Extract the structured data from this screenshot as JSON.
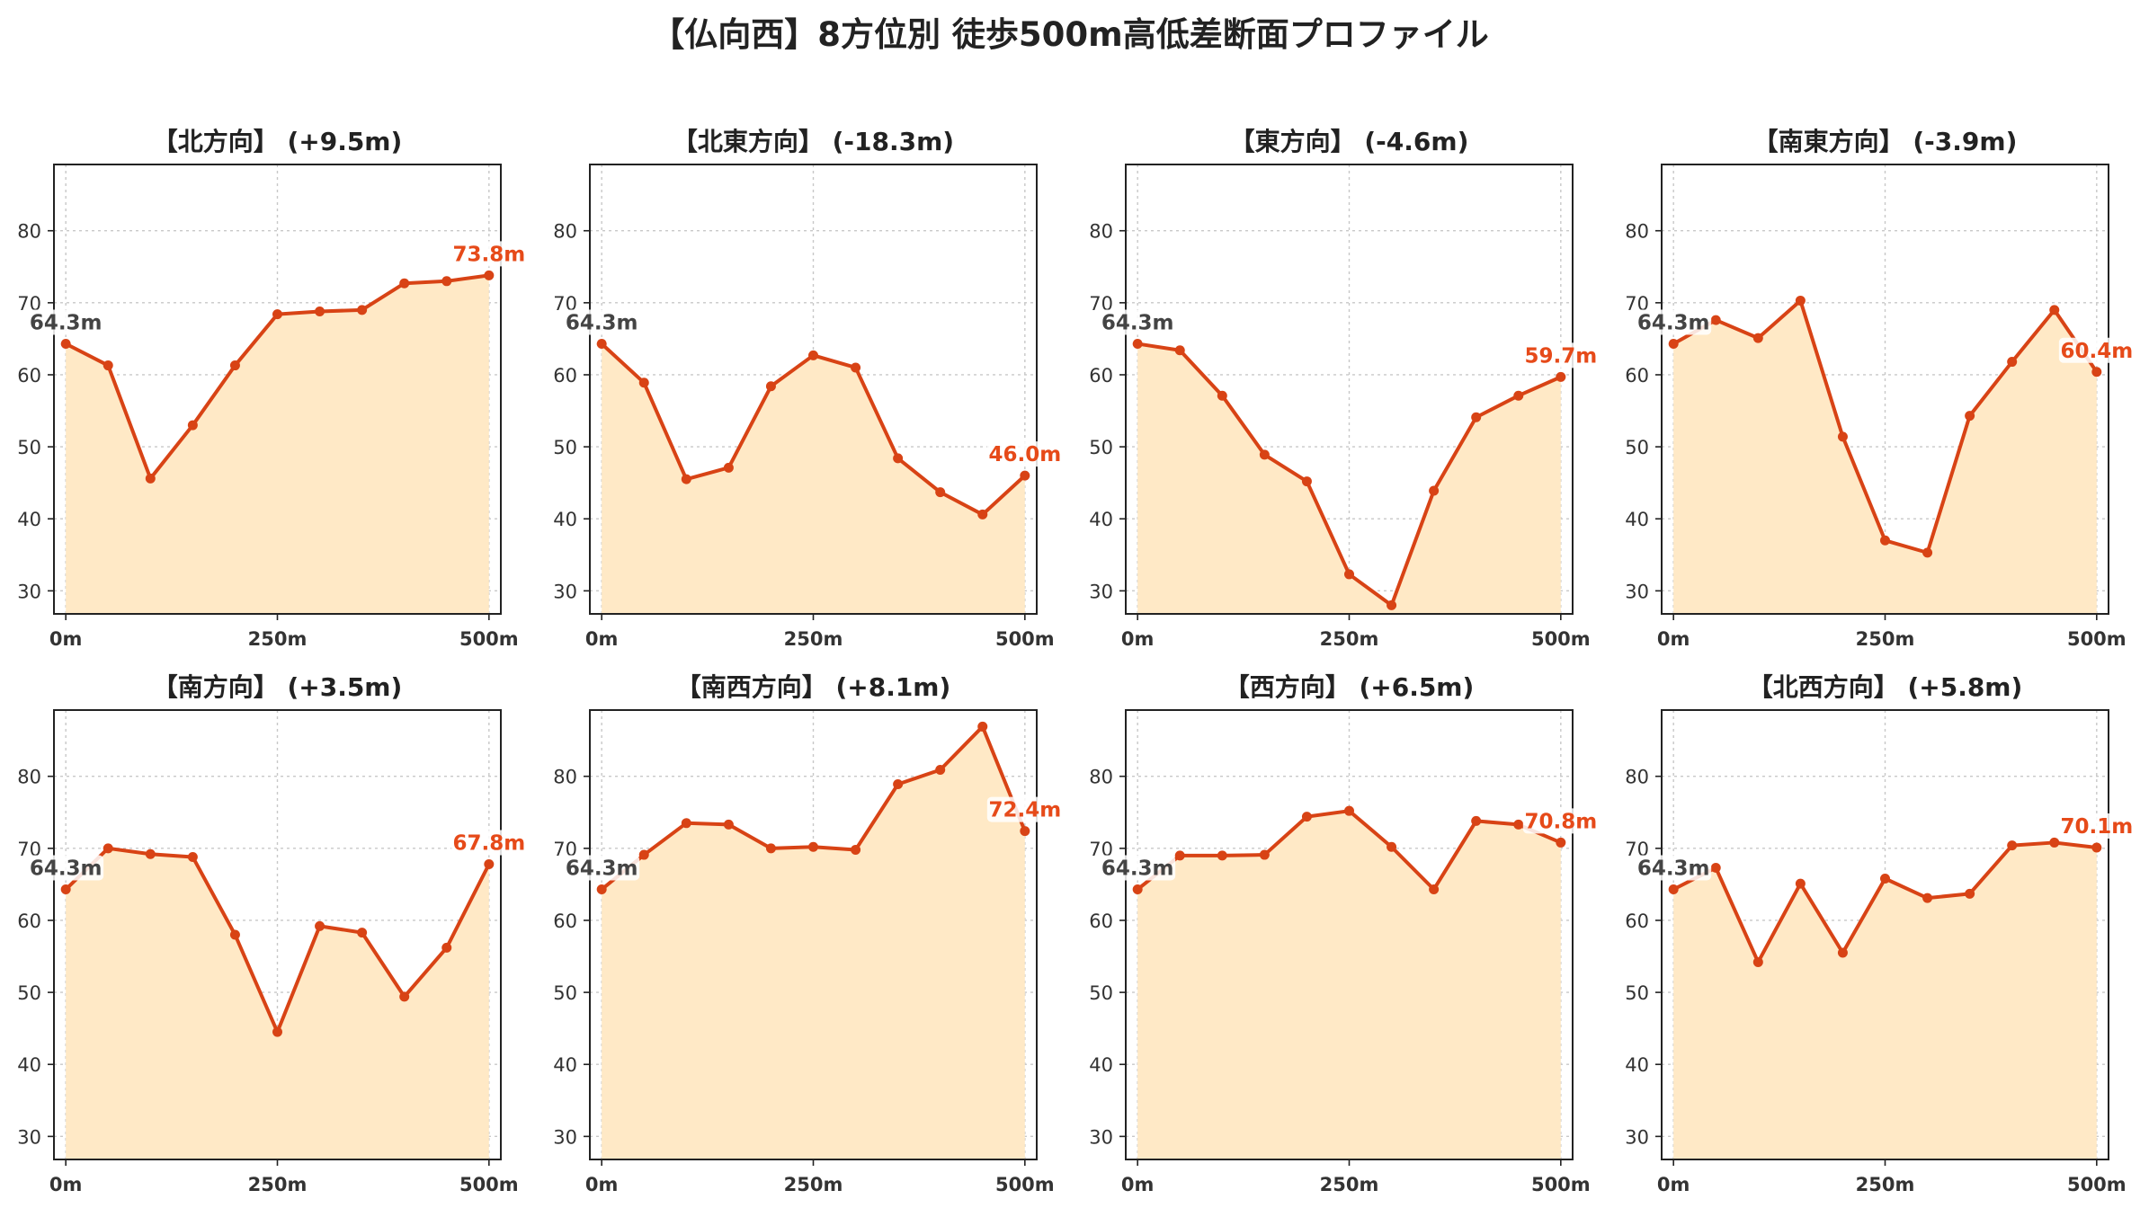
{
  "title": "【仏向西】8方位別 徒歩500m高低差断面プロファイル",
  "style": {
    "line_color": "#d84315",
    "fill_color": "#ffe9c6",
    "grid_color": "#c8c8c8",
    "start_label_color": "#444444",
    "end_label_color": "#e64a19"
  },
  "chart_data": [
    {
      "type": "area",
      "title": "【北方向】 (+9.5m)",
      "x": [
        0,
        50,
        100,
        150,
        200,
        250,
        300,
        350,
        400,
        450,
        500
      ],
      "y": [
        64.3,
        61.3,
        45.6,
        53.0,
        61.3,
        68.4,
        68.8,
        69.0,
        72.7,
        73.0,
        73.8
      ],
      "start_label": "64.3m",
      "end_label": "73.8m",
      "xticks": [
        0,
        250,
        500
      ],
      "xtick_labels": [
        "0m",
        "250m",
        "500m"
      ],
      "yticks": [
        30,
        40,
        50,
        60,
        70,
        80
      ],
      "xlim": [
        -14,
        514
      ],
      "ylim": [
        26.8,
        89.2
      ],
      "grid": true
    },
    {
      "type": "area",
      "title": "【北東方向】 (-18.3m)",
      "x": [
        0,
        50,
        100,
        150,
        200,
        250,
        300,
        350,
        400,
        450,
        500
      ],
      "y": [
        64.3,
        58.9,
        45.5,
        47.1,
        58.4,
        62.7,
        61.0,
        48.4,
        43.7,
        40.6,
        46.0
      ],
      "start_label": "64.3m",
      "end_label": "46.0m",
      "xticks": [
        0,
        250,
        500
      ],
      "xtick_labels": [
        "0m",
        "250m",
        "500m"
      ],
      "yticks": [
        30,
        40,
        50,
        60,
        70,
        80
      ],
      "xlim": [
        -14,
        514
      ],
      "ylim": [
        26.8,
        89.2
      ],
      "grid": true
    },
    {
      "type": "area",
      "title": "【東方向】 (-4.6m)",
      "x": [
        0,
        50,
        100,
        150,
        200,
        250,
        300,
        350,
        400,
        450,
        500
      ],
      "y": [
        64.3,
        63.4,
        57.1,
        48.9,
        45.2,
        32.3,
        28.0,
        43.9,
        54.1,
        57.1,
        59.7
      ],
      "start_label": "64.3m",
      "end_label": "59.7m",
      "xticks": [
        0,
        250,
        500
      ],
      "xtick_labels": [
        "0m",
        "250m",
        "500m"
      ],
      "yticks": [
        30,
        40,
        50,
        60,
        70,
        80
      ],
      "xlim": [
        -14,
        514
      ],
      "ylim": [
        26.8,
        89.2
      ],
      "grid": true
    },
    {
      "type": "area",
      "title": "【南東方向】 (-3.9m)",
      "x": [
        0,
        50,
        100,
        150,
        200,
        250,
        300,
        350,
        400,
        450,
        500
      ],
      "y": [
        64.3,
        67.6,
        65.1,
        70.3,
        51.4,
        37.0,
        35.3,
        54.3,
        61.8,
        69.0,
        60.4
      ],
      "start_label": "64.3m",
      "end_label": "60.4m",
      "xticks": [
        0,
        250,
        500
      ],
      "xtick_labels": [
        "0m",
        "250m",
        "500m"
      ],
      "yticks": [
        30,
        40,
        50,
        60,
        70,
        80
      ],
      "xlim": [
        -14,
        514
      ],
      "ylim": [
        26.8,
        89.2
      ],
      "grid": true
    },
    {
      "type": "area",
      "title": "【南方向】 (+3.5m)",
      "x": [
        0,
        50,
        100,
        150,
        200,
        250,
        300,
        350,
        400,
        450,
        500
      ],
      "y": [
        64.3,
        70.0,
        69.2,
        68.8,
        58.0,
        44.5,
        59.2,
        58.3,
        49.4,
        56.2,
        67.8
      ],
      "start_label": "64.3m",
      "end_label": "67.8m",
      "xticks": [
        0,
        250,
        500
      ],
      "xtick_labels": [
        "0m",
        "250m",
        "500m"
      ],
      "yticks": [
        30,
        40,
        50,
        60,
        70,
        80
      ],
      "xlim": [
        -14,
        514
      ],
      "ylim": [
        26.8,
        89.2
      ],
      "grid": true
    },
    {
      "type": "area",
      "title": "【南西方向】 (+8.1m)",
      "x": [
        0,
        50,
        100,
        150,
        200,
        250,
        300,
        350,
        400,
        450,
        500
      ],
      "y": [
        64.3,
        69.1,
        73.5,
        73.3,
        70.0,
        70.2,
        69.8,
        78.9,
        80.9,
        86.9,
        72.4
      ],
      "start_label": "64.3m",
      "end_label": "72.4m",
      "xticks": [
        0,
        250,
        500
      ],
      "xtick_labels": [
        "0m",
        "250m",
        "500m"
      ],
      "yticks": [
        30,
        40,
        50,
        60,
        70,
        80
      ],
      "xlim": [
        -14,
        514
      ],
      "ylim": [
        26.8,
        89.2
      ],
      "grid": true
    },
    {
      "type": "area",
      "title": "【西方向】 (+6.5m)",
      "x": [
        0,
        50,
        100,
        150,
        200,
        250,
        300,
        350,
        400,
        450,
        500
      ],
      "y": [
        64.3,
        69.0,
        69.0,
        69.1,
        74.4,
        75.2,
        70.2,
        64.3,
        73.8,
        73.3,
        70.8
      ],
      "start_label": "64.3m",
      "end_label": "70.8m",
      "xticks": [
        0,
        250,
        500
      ],
      "xtick_labels": [
        "0m",
        "250m",
        "500m"
      ],
      "yticks": [
        30,
        40,
        50,
        60,
        70,
        80
      ],
      "xlim": [
        -14,
        514
      ],
      "ylim": [
        26.8,
        89.2
      ],
      "grid": true
    },
    {
      "type": "area",
      "title": "【北西方向】 (+5.8m)",
      "x": [
        0,
        50,
        100,
        150,
        200,
        250,
        300,
        350,
        400,
        450,
        500
      ],
      "y": [
        64.3,
        67.3,
        54.2,
        65.1,
        55.5,
        65.8,
        63.1,
        63.7,
        70.4,
        70.8,
        70.1
      ],
      "start_label": "64.3m",
      "end_label": "70.1m",
      "xticks": [
        0,
        250,
        500
      ],
      "xtick_labels": [
        "0m",
        "250m",
        "500m"
      ],
      "yticks": [
        30,
        40,
        50,
        60,
        70,
        80
      ],
      "xlim": [
        -14,
        514
      ],
      "ylim": [
        26.8,
        89.2
      ],
      "grid": true
    }
  ]
}
